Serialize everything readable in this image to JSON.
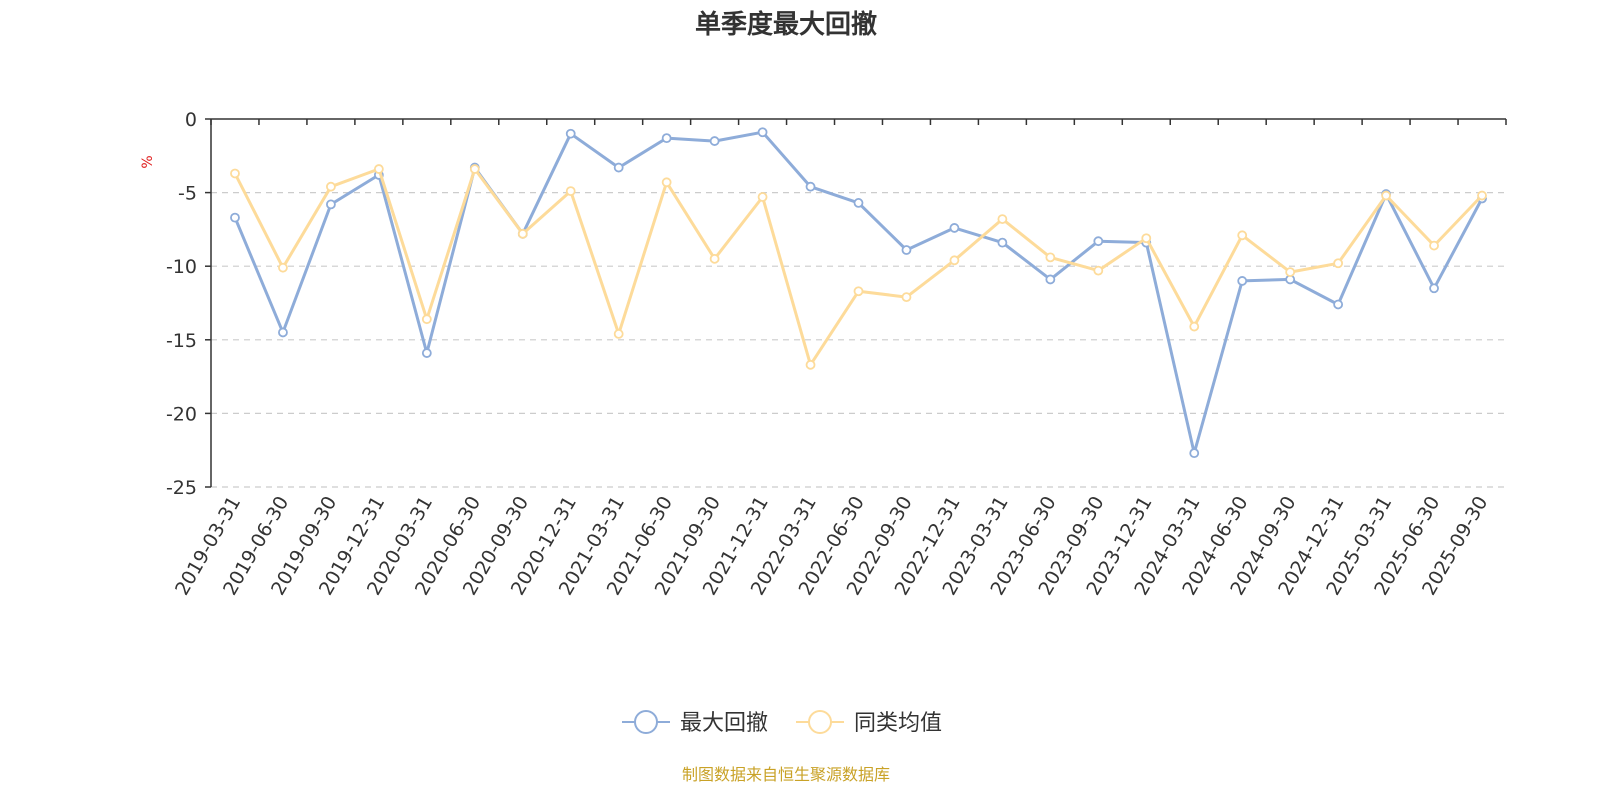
{
  "chart_data": {
    "type": "line",
    "title": "单季度最大回撤",
    "ylabel": "%",
    "ylim": [
      -25,
      0
    ],
    "yticks": [
      0,
      -5,
      -10,
      -15,
      -20,
      -25
    ],
    "grid": "horizontal-dashed",
    "legend_position": "bottom-center",
    "categories": [
      "2019-03-31",
      "2019-06-30",
      "2019-09-30",
      "2019-12-31",
      "2020-03-31",
      "2020-06-30",
      "2020-09-30",
      "2020-12-31",
      "2021-03-31",
      "2021-06-30",
      "2021-09-30",
      "2021-12-31",
      "2022-03-31",
      "2022-06-30",
      "2022-09-30",
      "2022-12-31",
      "2023-03-31",
      "2023-06-30",
      "2023-09-30",
      "2023-12-31",
      "2024-03-31",
      "2024-06-30",
      "2024-09-30",
      "2024-12-31",
      "2025-03-31",
      "2025-06-30",
      "2025-09-30"
    ],
    "series": [
      {
        "name": "最大回撤",
        "color": "#8eacd9",
        "values": [
          -6.7,
          -14.5,
          -5.8,
          -3.8,
          -15.9,
          -3.3,
          -7.8,
          -1.0,
          -3.3,
          -1.3,
          -1.5,
          -0.9,
          -4.6,
          -5.7,
          -8.9,
          -7.4,
          -8.4,
          -10.9,
          -8.3,
          -8.4,
          -22.7,
          -11.0,
          -10.9,
          -12.6,
          -5.1,
          -11.5,
          -5.4
        ]
      },
      {
        "name": "同类均值",
        "color": "#fddb9a",
        "values": [
          -3.7,
          -10.1,
          -4.6,
          -3.4,
          -13.6,
          -3.4,
          -7.8,
          -4.9,
          -14.6,
          -4.3,
          -9.5,
          -5.3,
          -16.7,
          -11.7,
          -12.1,
          -9.6,
          -6.8,
          -9.4,
          -10.3,
          -8.1,
          -14.1,
          -7.9,
          -10.4,
          -9.8,
          -5.2,
          -8.6,
          -5.2
        ]
      }
    ]
  },
  "source_text": "制图数据来自恒生聚源数据库",
  "colors": {
    "source": "#c9a227",
    "unit": "#e02020",
    "axis": "#333333",
    "grid": "#cccccc"
  }
}
